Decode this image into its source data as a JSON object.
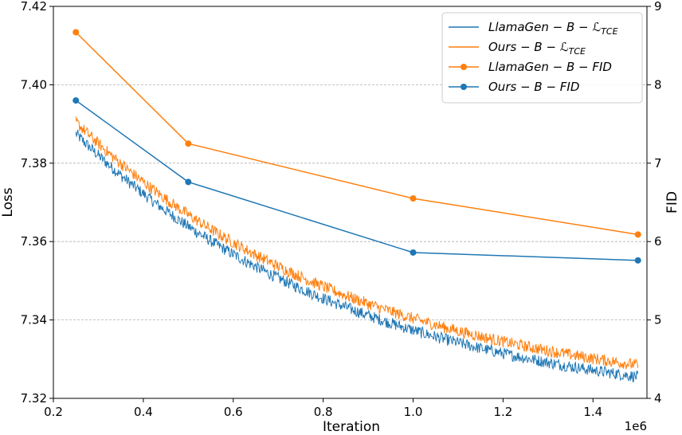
{
  "chart_data": {
    "type": "line",
    "xlabel": "Iteration",
    "x_offset_label": "1e6",
    "ylabel_left": "Loss",
    "ylabel_right": "FID",
    "xlim": [
      0.2,
      1.52
    ],
    "ylim_left": [
      7.32,
      7.42
    ],
    "ylim_right": [
      4,
      9
    ],
    "x_ticks": [
      0.2,
      0.4,
      0.6,
      0.8,
      1.0,
      1.2,
      1.4
    ],
    "x_tick_labels": [
      "0.2",
      "0.4",
      "0.6",
      "0.8",
      "1.0",
      "1.2",
      "1.4"
    ],
    "y_left_ticks": [
      7.32,
      7.34,
      7.36,
      7.38,
      7.4,
      7.42
    ],
    "y_left_tick_labels": [
      "7.32",
      "7.34",
      "7.36",
      "7.38",
      "7.40",
      "7.42"
    ],
    "y_right_ticks": [
      4,
      5,
      6,
      7,
      8,
      9
    ],
    "y_right_tick_labels": [
      "4",
      "5",
      "6",
      "7",
      "8",
      "9"
    ],
    "grid": "horizontal dashed",
    "legend_position": "top-right",
    "series": [
      {
        "name": "LlamaGen − B − ℒ_TCE",
        "label_main": "LlamaGen − B − ℒ",
        "label_sub": "TCE",
        "axis": "left",
        "style": "line",
        "color": "#1f77b4",
        "x_range": [
          0.25,
          1.5
        ],
        "start": 7.3875,
        "end": 7.3255,
        "noise": 0.0015
      },
      {
        "name": "Ours − B − ℒ_TCE",
        "label_main": "Ours − B − ℒ",
        "label_sub": "TCE",
        "axis": "left",
        "style": "line",
        "color": "#ff7f0e",
        "x_range": [
          0.25,
          1.5
        ],
        "start": 7.3905,
        "end": 7.3285,
        "noise": 0.0015
      },
      {
        "name": "LlamaGen − B − FID",
        "label_main": "LlamaGen − B − FID",
        "label_sub": "",
        "axis": "right",
        "style": "line-marker",
        "color": "#ff7f0e",
        "x": [
          0.25,
          0.5,
          1.0,
          1.5
        ],
        "values": [
          8.67,
          7.25,
          6.55,
          6.09
        ]
      },
      {
        "name": "Ours − B − FID",
        "label_main": "Ours − B − FID",
        "label_sub": "",
        "axis": "right",
        "style": "line-marker",
        "color": "#1f77b4",
        "x": [
          0.25,
          0.5,
          1.0,
          1.5
        ],
        "values": [
          7.8,
          6.76,
          5.86,
          5.76
        ]
      }
    ]
  }
}
